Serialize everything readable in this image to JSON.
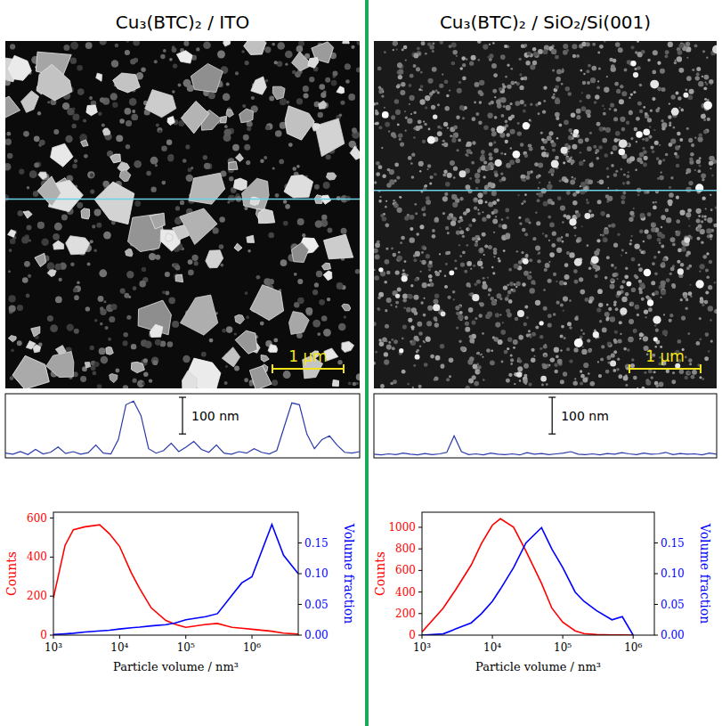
{
  "panels": [
    {
      "title": "Cu₃(BTC)₂ / ITO",
      "scale_bar": "1 µm"
    },
    {
      "title": "Cu₃(BTC)₂ / SiO₂/Si(001)",
      "scale_bar": "1 µm"
    }
  ],
  "chart_data": [
    {
      "type": "line",
      "tick_labels": false,
      "x": [
        0,
        0.1,
        0.2,
        0.3,
        0.4,
        0.5,
        0.6,
        0.7,
        0.8,
        0.9,
        1.0,
        1.1,
        1.2,
        1.3,
        1.4,
        1.5,
        1.6,
        1.7,
        1.8,
        1.9,
        2.0,
        2.1,
        2.2,
        2.3,
        2.4,
        2.5,
        2.6,
        2.7,
        2.8,
        2.9,
        3.0,
        3.1,
        3.2,
        3.3,
        3.4,
        3.5,
        3.6,
        3.7,
        3.8,
        3.9,
        4.0,
        4.1,
        4.2,
        4.3,
        4.4,
        4.5,
        4.6,
        4.7
      ],
      "xlim": [
        0,
        4.7
      ],
      "ylim": [
        -5,
        170
      ],
      "series": [
        {
          "color": "#2a3aa8",
          "values": [
            8,
            5,
            12,
            4,
            18,
            6,
            10,
            25,
            7,
            12,
            5,
            9,
            30,
            8,
            6,
            45,
            140,
            150,
            110,
            20,
            8,
            15,
            35,
            12,
            25,
            40,
            18,
            10,
            30,
            8,
            5,
            12,
            8,
            20,
            10,
            6,
            15,
            80,
            145,
            140,
            60,
            20,
            45,
            55,
            30,
            10,
            8,
            12
          ]
        }
      ],
      "scale_bar": {
        "value": 100,
        "label": "100 nm"
      }
    },
    {
      "type": "line",
      "tick_labels": false,
      "x": [
        0,
        0.1,
        0.2,
        0.3,
        0.4,
        0.5,
        0.6,
        0.7,
        0.8,
        0.9,
        1.0,
        1.1,
        1.2,
        1.3,
        1.4,
        1.5,
        1.6,
        1.7,
        1.8,
        1.9,
        2.0,
        2.1,
        2.2,
        2.3,
        2.4,
        2.5,
        2.6,
        2.7,
        2.8,
        2.9,
        3.0,
        3.1,
        3.2,
        3.3,
        3.4,
        3.5,
        3.6,
        3.7,
        3.8,
        3.9,
        4.0,
        4.1,
        4.2,
        4.3,
        4.4,
        4.5,
        4.6,
        4.7
      ],
      "xlim": [
        0,
        4.7
      ],
      "ylim": [
        -5,
        170
      ],
      "series": [
        {
          "color": "#2a3aa8",
          "values": [
            5,
            3,
            6,
            4,
            8,
            5,
            3,
            7,
            4,
            6,
            10,
            55,
            12,
            4,
            6,
            3,
            8,
            5,
            4,
            6,
            3,
            9,
            5,
            7,
            4,
            6,
            8,
            12,
            5,
            4,
            6,
            3,
            7,
            5,
            9,
            6,
            4,
            8,
            5,
            6,
            10,
            4,
            7,
            5,
            6,
            3,
            8,
            5
          ]
        }
      ],
      "scale_bar": {
        "value": 100,
        "label": "100 nm"
      }
    },
    {
      "type": "line",
      "log": "x",
      "xlabel": "Particle volume / nm³",
      "ylabel": "Counts",
      "y2label": "Volume fraction",
      "x": [
        1000,
        1500,
        2000,
        3000,
        5000,
        7000,
        10000,
        15000,
        20000,
        30000,
        50000,
        70000,
        100000,
        200000,
        300000,
        500000,
        700000,
        1000000,
        2000000,
        3000000,
        5000000
      ],
      "xlim": [
        1000,
        5000000
      ],
      "xticks": [
        {
          "value": 1000,
          "label": "10³"
        },
        {
          "value": 10000,
          "label": "10⁴"
        },
        {
          "value": 100000,
          "label": "10⁵"
        },
        {
          "value": 1000000,
          "label": "10⁶"
        }
      ],
      "ylim": [
        0,
        630
      ],
      "yticks": [
        0,
        200,
        400,
        600
      ],
      "y2lim": [
        0,
        0.2
      ],
      "y2ticks": [
        {
          "value": 0,
          "label": "0.00"
        },
        0.05,
        {
          "value": 0.1,
          "label": "0.10"
        },
        0.15
      ],
      "series": [
        {
          "color": "#ff0000",
          "values": [
            190,
            460,
            540,
            555,
            565,
            520,
            455,
            320,
            240,
            140,
            75,
            55,
            40,
            55,
            60,
            40,
            35,
            30,
            20,
            10,
            5
          ]
        },
        {
          "color": "#0000ff",
          "axis": "y2",
          "values": [
            0.001,
            0.002,
            0.003,
            0.005,
            0.007,
            0.008,
            0.01,
            0.012,
            0.013,
            0.015,
            0.017,
            0.02,
            0.025,
            0.03,
            0.035,
            0.065,
            0.085,
            0.095,
            0.18,
            0.13,
            0.1
          ]
        }
      ]
    },
    {
      "type": "line",
      "log": "x",
      "xlabel": "Particle volume / nm³",
      "ylabel": "Counts",
      "y2label": "Volume fraction",
      "x": [
        1000,
        2000,
        3000,
        5000,
        7000,
        10000,
        13000,
        20000,
        30000,
        50000,
        70000,
        100000,
        150000,
        200000,
        300000,
        500000,
        700000,
        1000000
      ],
      "xlim": [
        1000,
        2000000
      ],
      "xticks": [
        {
          "value": 1000,
          "label": "10³"
        },
        {
          "value": 10000,
          "label": "10⁴"
        },
        {
          "value": 100000,
          "label": "10⁵"
        },
        {
          "value": 1000000,
          "label": "10⁶"
        }
      ],
      "ylim": [
        0,
        1140
      ],
      "yticks": [
        0,
        200,
        400,
        600,
        800,
        1000
      ],
      "y2lim": [
        0,
        0.2
      ],
      "y2ticks": [
        {
          "value": 0,
          "label": "0.00"
        },
        0.05,
        {
          "value": 0.1,
          "label": "0.10"
        },
        0.15
      ],
      "series": [
        {
          "color": "#ff0000",
          "values": [
            30,
            250,
            420,
            650,
            850,
            1020,
            1080,
            1000,
            780,
            480,
            250,
            120,
            40,
            15,
            5,
            2,
            1,
            0
          ]
        },
        {
          "color": "#0000ff",
          "axis": "y2",
          "values": [
            0,
            0.002,
            0.01,
            0.02,
            0.035,
            0.055,
            0.075,
            0.11,
            0.15,
            0.175,
            0.14,
            0.11,
            0.07,
            0.055,
            0.04,
            0.025,
            0.03,
            0
          ]
        }
      ]
    }
  ]
}
